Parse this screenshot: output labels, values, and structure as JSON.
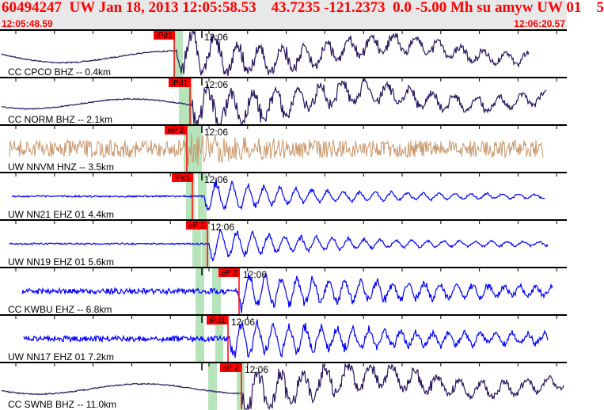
{
  "header": {
    "title": "60494247  UW Jan 18, 2013 12:05:58.53    43.7235 -121.2373  0.0 -5.00 Mh su amyw UW 01    5",
    "start_time": "12:05:48.59",
    "end_time": "12:06:20.57"
  },
  "minute_label": "12:06",
  "colors": {
    "title": "#ff0000",
    "pick": "#ff0000",
    "band": "#b8e4bc",
    "dark": "#2a1560",
    "brown": "#c8966a",
    "blue": "#0000ff"
  },
  "panels": [
    {
      "label": "CC CPCO BHZ -- 0.4km",
      "pick": "iPd1",
      "color": "#2a1560"
    },
    {
      "label": "CC NORM BHZ -- 2.1km",
      "pick": "iPd1",
      "color": "#2a1560"
    },
    {
      "label": "UW NNVM HNZ -- 3.5km",
      "pick": "eP 2",
      "color": "#c8966a"
    },
    {
      "label": "UW NN21 EHZ 01 4.4km",
      "pick": "iPc1",
      "color": "#0000ff"
    },
    {
      "label": "UW NN19 EHZ 01 5.6km",
      "pick": "eP 2",
      "color": "#0000ff"
    },
    {
      "label": "CC KWBU EHZ -- 6.8km",
      "pick": "eP 2",
      "color": "#0000ff"
    },
    {
      "label": "UW NN17 EHZ 01 7.2km",
      "pick": "iPd1",
      "color": "#0000ff"
    },
    {
      "label": "CC SWNB BHZ -- 11.0km",
      "pick": "eP 2",
      "color": "#2a1560"
    }
  ]
}
